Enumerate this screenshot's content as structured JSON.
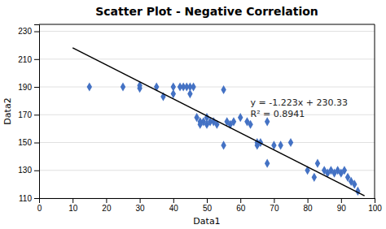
{
  "chart_data": {
    "type": "scatter",
    "title": "Scatter Plot - Negative Correlation",
    "xlabel": "Data1",
    "ylabel": "Data2",
    "xlim": [
      0,
      100
    ],
    "ylim": [
      110,
      235
    ],
    "xticks": [
      0,
      10,
      20,
      30,
      40,
      50,
      60,
      70,
      80,
      90,
      100
    ],
    "yticks": [
      110,
      130,
      150,
      170,
      190,
      210,
      230
    ],
    "grid": "y",
    "annotations": [
      "y = -1.223x + 230.33",
      "R² = 0.8941"
    ],
    "series": [
      {
        "type": "scatter",
        "color": "#4472C4",
        "marker": "diamond",
        "x": [
          15,
          25,
          30,
          30,
          35,
          37,
          40,
          40,
          42,
          43,
          44,
          45,
          45,
          46,
          47,
          48,
          48,
          49,
          50,
          50,
          51,
          52,
          53,
          55,
          55,
          56,
          57,
          58,
          60,
          62,
          63,
          65,
          65,
          66,
          68,
          68,
          70,
          72,
          75,
          80,
          82,
          83,
          85,
          86,
          87,
          88,
          89,
          90,
          91,
          92,
          93,
          94,
          95
        ],
        "values": [
          190,
          190,
          191,
          189,
          190,
          183,
          190,
          185,
          190,
          190,
          190,
          190,
          185,
          190,
          168,
          165,
          163,
          165,
          168,
          163,
          165,
          165,
          163,
          188,
          148,
          165,
          163,
          165,
          168,
          165,
          163,
          148,
          150,
          150,
          135,
          165,
          148,
          148,
          150,
          130,
          125,
          135,
          130,
          128,
          130,
          128,
          130,
          128,
          130,
          125,
          122,
          120,
          115
        ]
      },
      {
        "type": "line",
        "color": "#000000",
        "line_style": "solid",
        "x": [
          10,
          97
        ],
        "values": [
          218.1,
          111.699
        ]
      }
    ]
  }
}
